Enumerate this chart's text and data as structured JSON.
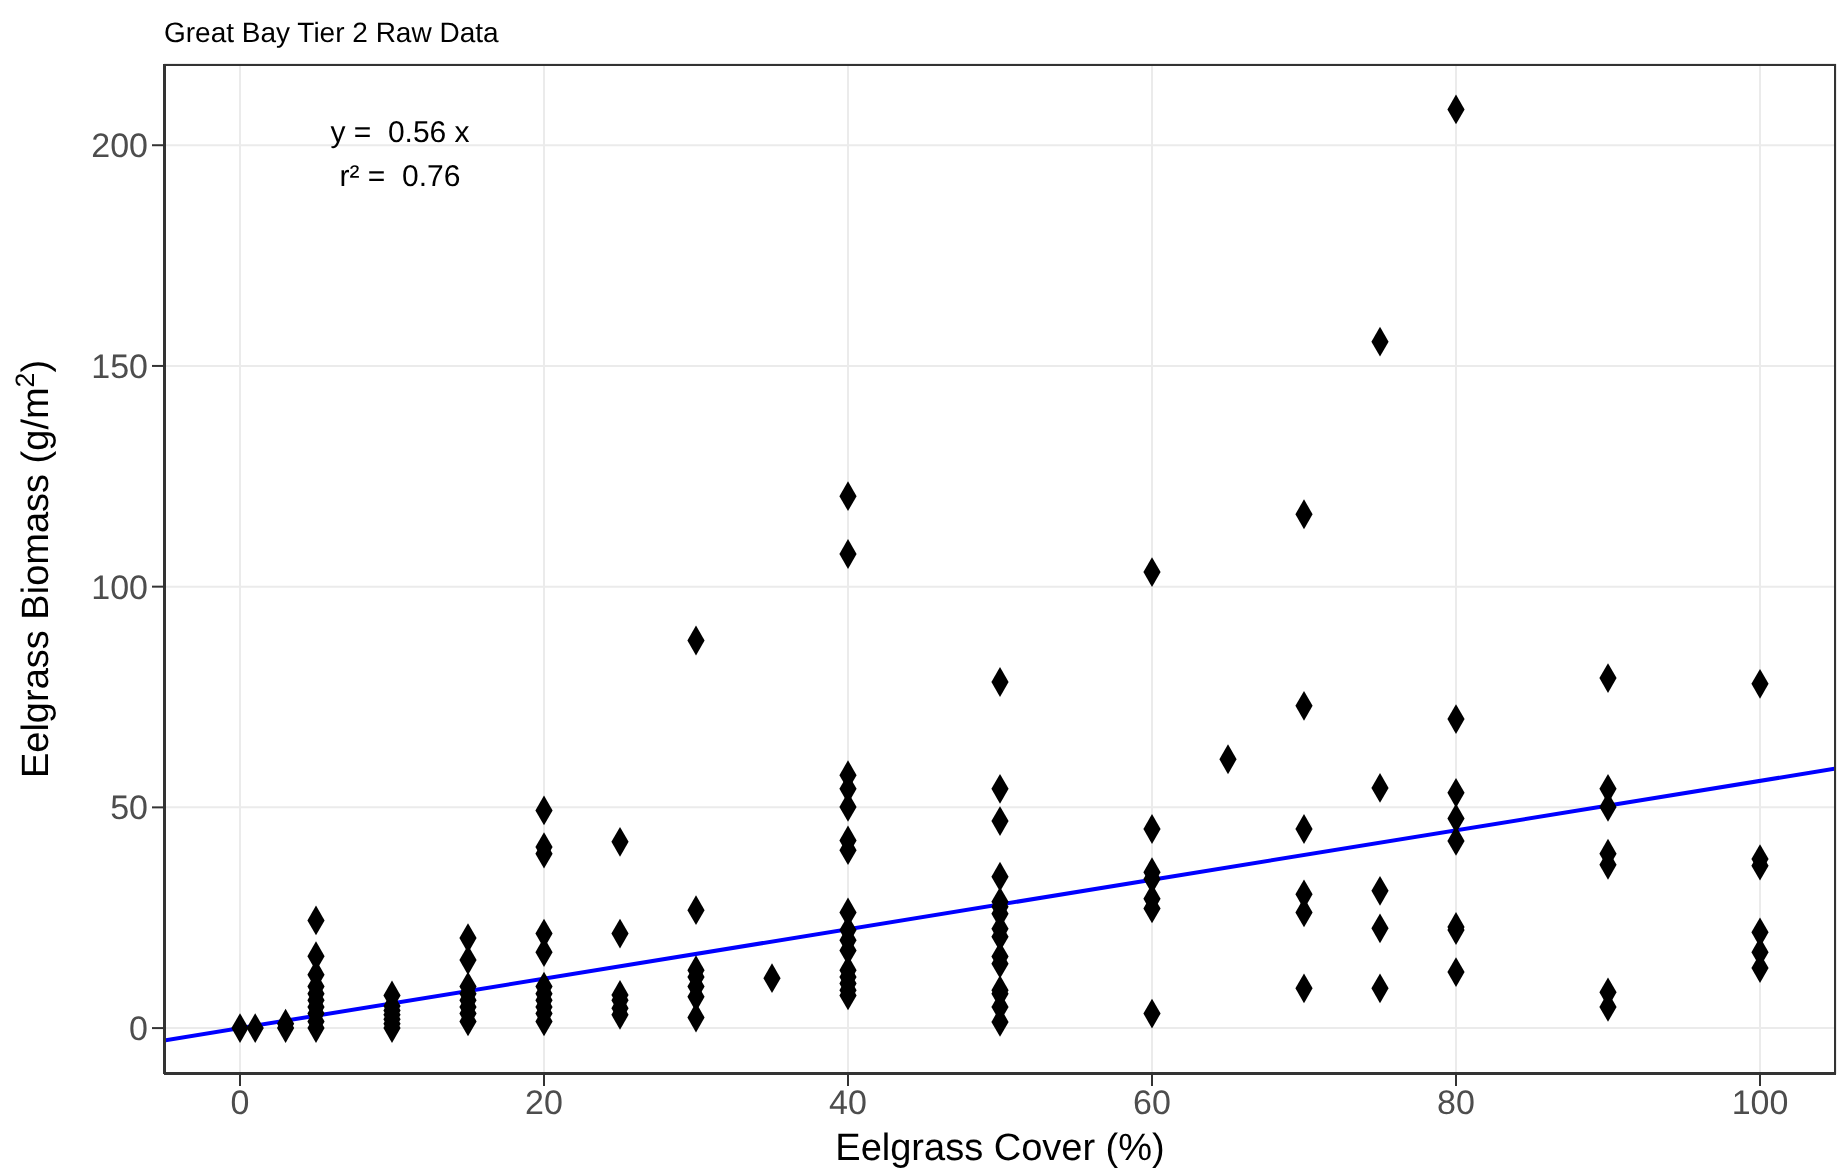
{
  "chart_data": {
    "type": "scatter",
    "title": "Great Bay Tier 2 Raw Data",
    "xlabel": "Eelgrass Cover (%)",
    "ylabel": "Eelgrass Biomass (g/m$^{2}$)",
    "annotations": [
      "y =  0.56 x",
      "r² =  0.76"
    ],
    "xlim": [
      -5,
      105
    ],
    "ylim": [
      -10.4,
      218.4
    ],
    "xticks": [
      0,
      20,
      40,
      60,
      80,
      100
    ],
    "yticks": [
      0,
      50,
      100,
      150,
      200
    ],
    "grid": true,
    "series": [
      {
        "marker": "diamond",
        "color": "#000000",
        "x": [
          0,
          1,
          3,
          3,
          5,
          5,
          5,
          5,
          5,
          5,
          5,
          5,
          5,
          5,
          10,
          10,
          10,
          10,
          10,
          10,
          10,
          15,
          15,
          15,
          15,
          15,
          15,
          15,
          15,
          20,
          20,
          20,
          20,
          20,
          20,
          20,
          20,
          20,
          20,
          20,
          25,
          25,
          25,
          25,
          25,
          25,
          30,
          30,
          30,
          30,
          30,
          30,
          30,
          35,
          40,
          40,
          40,
          40,
          40,
          40,
          40,
          40,
          40,
          40,
          40,
          40,
          40,
          40,
          40,
          40,
          50,
          50,
          50,
          50,
          50,
          50,
          50,
          50,
          50,
          50,
          50,
          50,
          50,
          50,
          50,
          60,
          60,
          60,
          60,
          60,
          60,
          60,
          65,
          70,
          70,
          70,
          70,
          70,
          70,
          75,
          75,
          75,
          75,
          75,
          80,
          80,
          80,
          80,
          80,
          80,
          80,
          80,
          90,
          90,
          90,
          90,
          90,
          90,
          90,
          100,
          100,
          100,
          100,
          100,
          100
        ],
        "values": [
          0,
          0,
          1,
          0,
          24.4,
          16.3,
          12.1,
          9.4,
          7.8,
          6.3,
          4.8,
          3.3,
          1.5,
          0,
          7.4,
          5,
          4,
          3,
          2,
          1,
          0,
          20.4,
          15.4,
          9.4,
          7.8,
          6.3,
          4.8,
          3.3,
          1.5,
          49.3,
          41,
          39.5,
          21.4,
          17.2,
          9.4,
          7.8,
          6.3,
          4.8,
          3.3,
          1.5,
          42.2,
          21.4,
          7.5,
          6.3,
          4.5,
          3,
          87.8,
          26.7,
          13.1,
          11.6,
          9.4,
          7.1,
          2.4,
          11.3,
          120.5,
          107.4,
          57.3,
          54.2,
          50.1,
          42.5,
          40.3,
          26.2,
          22.2,
          19.9,
          17.6,
          13.1,
          11.6,
          10.1,
          8.6,
          7.4,
          78.4,
          54.2,
          46.9,
          34.3,
          28.6,
          27.5,
          25.9,
          22.5,
          20.7,
          16.2,
          14.6,
          8.6,
          7.8,
          4.8,
          1.4,
          103.3,
          45.1,
          35.3,
          33.8,
          29.3,
          27.1,
          3.3,
          60.9,
          116.4,
          73,
          45.1,
          30.3,
          26.2,
          9,
          155.5,
          54.4,
          31.1,
          22.6,
          9,
          208.1,
          70,
          53.3,
          47.5,
          42.4,
          22.9,
          22.2,
          12.7,
          79.3,
          54.2,
          50.1,
          39.5,
          37,
          8.1,
          4.8,
          78,
          38.3,
          36.8,
          21.7,
          17.2,
          13.6
        ]
      },
      {
        "type": "line",
        "color": "#0000ff",
        "x": [
          -5,
          105
        ],
        "values": [
          -2.8,
          58.8
        ]
      }
    ]
  }
}
